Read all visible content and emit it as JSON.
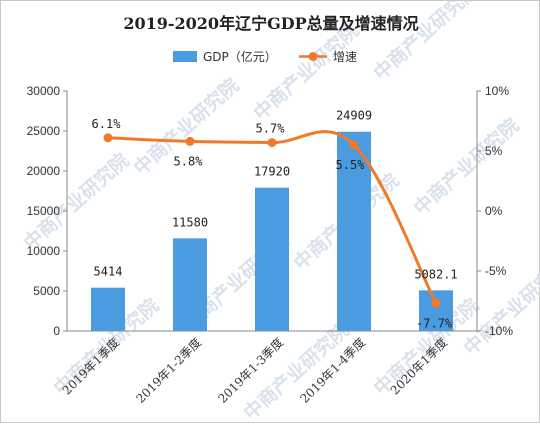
{
  "chart_data": {
    "type": "bar",
    "title": "2019-2020年辽宁GDP总量及增速情况",
    "categories": [
      "2019年1季度",
      "2019年1-2季度",
      "2019年1-3季度",
      "2019年1-4季度",
      "2020年1季度"
    ],
    "series": [
      {
        "name": "GDP（亿元）",
        "type": "bar",
        "axis": "left",
        "values": [
          5414,
          11580,
          17920,
          24909,
          5082.1
        ],
        "labels": [
          "5414",
          "11580",
          "17920",
          "24909",
          "5082.1"
        ],
        "color": "#4a9be0"
      },
      {
        "name": "增速",
        "type": "line",
        "axis": "right",
        "values": [
          6.1,
          5.8,
          5.7,
          5.5,
          -7.7
        ],
        "labels": [
          "6.1%",
          "5.8%",
          "5.7%",
          "5.5%",
          "-7.7%"
        ],
        "color": "#f07a2a"
      }
    ],
    "y_left": {
      "min": 0,
      "max": 30000,
      "ticks": [
        "0",
        "5000",
        "10000",
        "15000",
        "20000",
        "25000",
        "30000"
      ]
    },
    "y_right": {
      "min": -10,
      "max": 10,
      "ticks": [
        "-10%",
        "-5%",
        "0%",
        "5%",
        "10%"
      ]
    },
    "grid": false,
    "legend": "top-center"
  },
  "watermark": "中商产业研究院"
}
